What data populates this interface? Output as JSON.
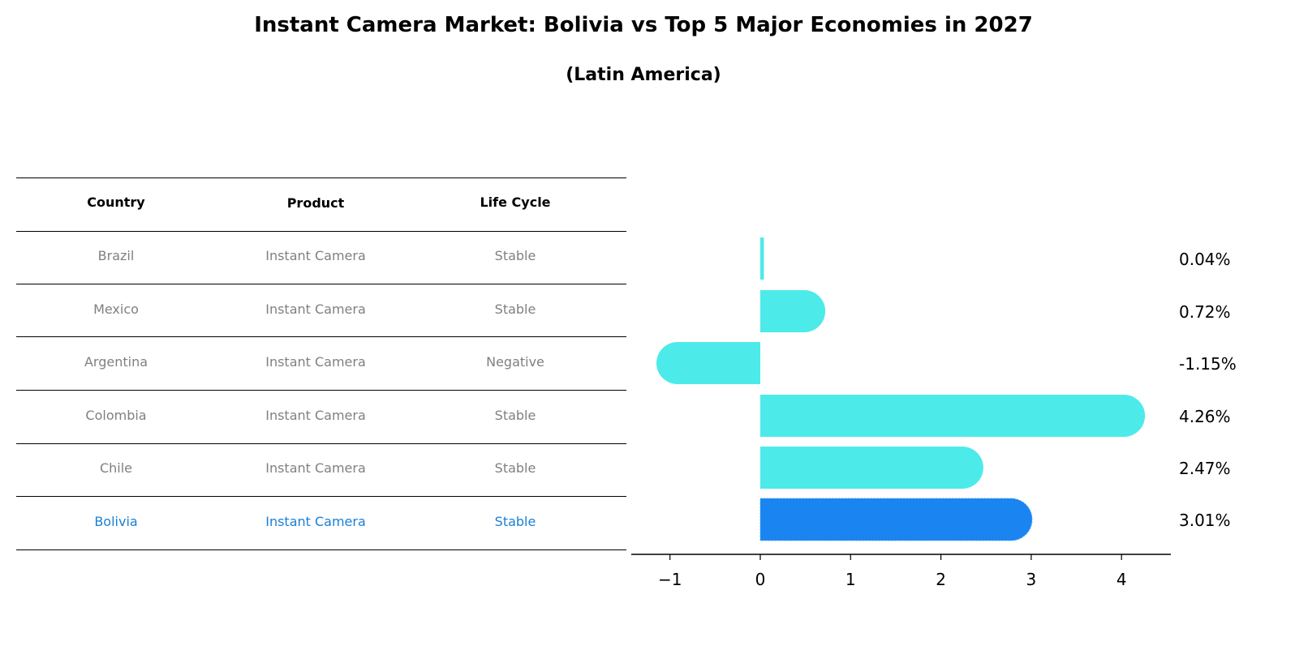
{
  "title": "Instant Camera Market: Bolivia vs Top 5 Major Economies in 2027",
  "subtitle": "(Latin America)",
  "table": {
    "headers": [
      "Country",
      "Product",
      "Life Cycle"
    ],
    "rows": [
      {
        "country": "Brazil",
        "product": "Instant Camera",
        "life_cycle": "Stable",
        "highlight": false
      },
      {
        "country": "Mexico",
        "product": "Instant Camera",
        "life_cycle": "Stable",
        "highlight": false
      },
      {
        "country": "Argentina",
        "product": "Instant Camera",
        "life_cycle": "Negative",
        "highlight": false
      },
      {
        "country": "Colombia",
        "product": "Instant Camera",
        "life_cycle": "Stable",
        "highlight": false
      },
      {
        "country": "Chile",
        "product": "Instant Camera",
        "life_cycle": "Stable",
        "highlight": false
      },
      {
        "country": "Bolivia",
        "product": "Instant Camera",
        "life_cycle": "Stable",
        "highlight": true
      }
    ]
  },
  "colors": {
    "bar": "#4deaea",
    "highlight_bar": "#1a84f0",
    "muted_text": "#808080",
    "highlight_text": "#1a80d6"
  },
  "chart_data": {
    "type": "bar",
    "orientation": "horizontal",
    "title": "Instant Camera Market: Bolivia vs Top 5 Major Economies in 2027",
    "subtitle": "(Latin America)",
    "categories": [
      "Brazil",
      "Mexico",
      "Argentina",
      "Colombia",
      "Chile",
      "Bolivia"
    ],
    "values": [
      0.04,
      0.72,
      -1.15,
      4.26,
      2.47,
      3.01
    ],
    "value_labels": [
      "0.04%",
      "0.72%",
      "-1.15%",
      "4.26%",
      "2.47%",
      "3.01%"
    ],
    "highlight": "Bolivia",
    "xlabel": "",
    "ylabel": "",
    "xticks": [
      -1,
      0,
      1,
      2,
      3,
      4
    ],
    "xtick_labels": [
      "−1",
      "0",
      "1",
      "2",
      "3",
      "4"
    ],
    "xlim": [
      -1.42,
      4.55
    ],
    "grid": false,
    "legend": null
  }
}
